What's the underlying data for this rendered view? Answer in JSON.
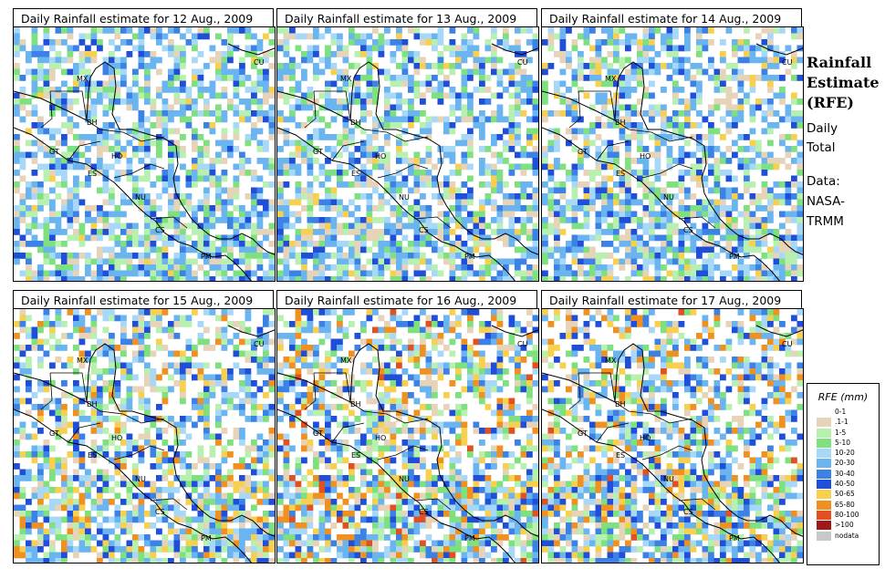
{
  "panels": [
    {
      "title": "Daily Rainfall estimate for  12 Aug., 2009",
      "seed": 12,
      "intensity": 0.55
    },
    {
      "title": "Daily Rainfall estimate for  13 Aug., 2009",
      "seed": 13,
      "intensity": 0.6
    },
    {
      "title": "Daily Rainfall estimate for  14 Aug., 2009",
      "seed": 14,
      "intensity": 0.65
    },
    {
      "title": "Daily Rainfall estimate for  15 Aug., 2009",
      "seed": 15,
      "intensity": 0.8
    },
    {
      "title": "Daily Rainfall estimate for  16 Aug., 2009",
      "seed": 16,
      "intensity": 0.9
    },
    {
      "title": "Daily Rainfall estimate for  17 Aug., 2009",
      "seed": 17,
      "intensity": 0.85
    }
  ],
  "map_labels": {
    "mx": "MX",
    "cu": "CU",
    "bh": "BH",
    "gt": "GT",
    "ho": "HO",
    "es": "ES",
    "nu": "NU",
    "cs": "CS",
    "pm": "PM"
  },
  "side": {
    "title_line1": "Rainfall",
    "title_line2": "Estimate",
    "title_line3": "(RFE)",
    "daily": "Daily",
    "total": "Total",
    "data": "Data:",
    "nasa": "NASA-",
    "trmm": "TRMM"
  },
  "legend": {
    "title": "RFE (mm)",
    "items": [
      {
        "label": "0-1",
        "color": "#ffffff"
      },
      {
        "label": ".1-1",
        "color": "#e6d3b8"
      },
      {
        "label": "1-5",
        "color": "#b8f0b0"
      },
      {
        "label": "5-10",
        "color": "#7ee07e"
      },
      {
        "label": "10-20",
        "color": "#a8d8f8"
      },
      {
        "label": "20-30",
        "color": "#6ab4f0"
      },
      {
        "label": "30-40",
        "color": "#3c82e6"
      },
      {
        "label": "40-50",
        "color": "#1f4fd8"
      },
      {
        "label": "50-65",
        "color": "#f8d050"
      },
      {
        "label": "65-80",
        "color": "#f09020"
      },
      {
        "label": "80-100",
        "color": "#e05020"
      },
      {
        "label": ">100",
        "color": "#a01818"
      },
      {
        "label": "nodata",
        "color": "#c8c8c8"
      }
    ]
  }
}
